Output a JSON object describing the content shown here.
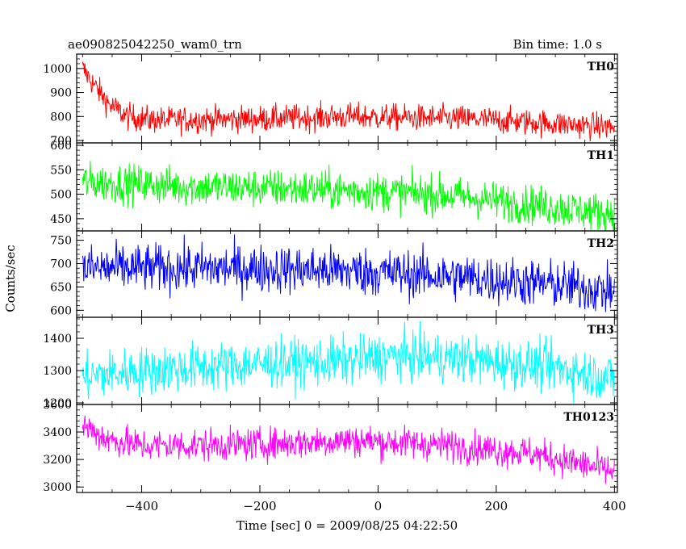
{
  "header": {
    "title": "ae090825042250_wam0_trn",
    "bin_time": "Bin time: 1.0 s"
  },
  "chart_data": {
    "type": "line",
    "xlabel": "Time [sec] 0 = 2009/08/25 04:22:50",
    "ylabel": "Counts/sec",
    "xlim": [
      -510,
      405
    ],
    "xticks": [
      -400,
      -200,
      0,
      200,
      400
    ],
    "x_step": 1,
    "panels": [
      {
        "name": "TH0",
        "color": "#ff0000",
        "ylim": [
          690,
          1060
        ],
        "yticks": [
          700,
          800,
          900,
          1000
        ],
        "trend": [
          [
            -500,
            1000
          ],
          [
            -480,
            930
          ],
          [
            -455,
            850
          ],
          [
            -425,
            800
          ],
          [
            -380,
            785
          ],
          [
            -200,
            790
          ],
          [
            -50,
            800
          ],
          [
            150,
            790
          ],
          [
            300,
            770
          ],
          [
            400,
            755
          ]
        ],
        "noise": 28
      },
      {
        "name": "TH1",
        "color": "#00ff00",
        "ylim": [
          425,
          605
        ],
        "yticks": [
          450,
          500,
          550,
          600
        ],
        "trend": [
          [
            -500,
            525
          ],
          [
            -300,
            515
          ],
          [
            -100,
            510
          ],
          [
            100,
            500
          ],
          [
            250,
            480
          ],
          [
            400,
            460
          ]
        ],
        "noise": 20
      },
      {
        "name": "TH2",
        "color": "#0000ff",
        "ylim": [
          585,
          770
        ],
        "yticks": [
          600,
          650,
          700,
          750
        ],
        "trend": [
          [
            -500,
            690
          ],
          [
            -250,
            690
          ],
          [
            -50,
            685
          ],
          [
            150,
            670
          ],
          [
            300,
            655
          ],
          [
            400,
            640
          ]
        ],
        "noise": 26
      },
      {
        "name": "TH3",
        "color": "#00ffff",
        "ylim": [
          1195,
          1465
        ],
        "yticks": [
          1200,
          1300,
          1400
        ],
        "trend": [
          [
            -500,
            1280
          ],
          [
            -400,
            1300
          ],
          [
            -200,
            1320
          ],
          [
            -50,
            1330
          ],
          [
            30,
            1345
          ],
          [
            150,
            1335
          ],
          [
            300,
            1310
          ],
          [
            400,
            1275
          ]
        ],
        "noise": 38
      },
      {
        "name": "TH0123",
        "color": "#ff00ff",
        "ylim": [
          2960,
          3600
        ],
        "yticks": [
          3000,
          3200,
          3400,
          3600
        ],
        "trend": [
          [
            -500,
            3450
          ],
          [
            -460,
            3350
          ],
          [
            -400,
            3300
          ],
          [
            -200,
            3310
          ],
          [
            -50,
            3340
          ],
          [
            100,
            3310
          ],
          [
            250,
            3250
          ],
          [
            330,
            3180
          ],
          [
            400,
            3110
          ]
        ],
        "noise": 60
      }
    ]
  }
}
